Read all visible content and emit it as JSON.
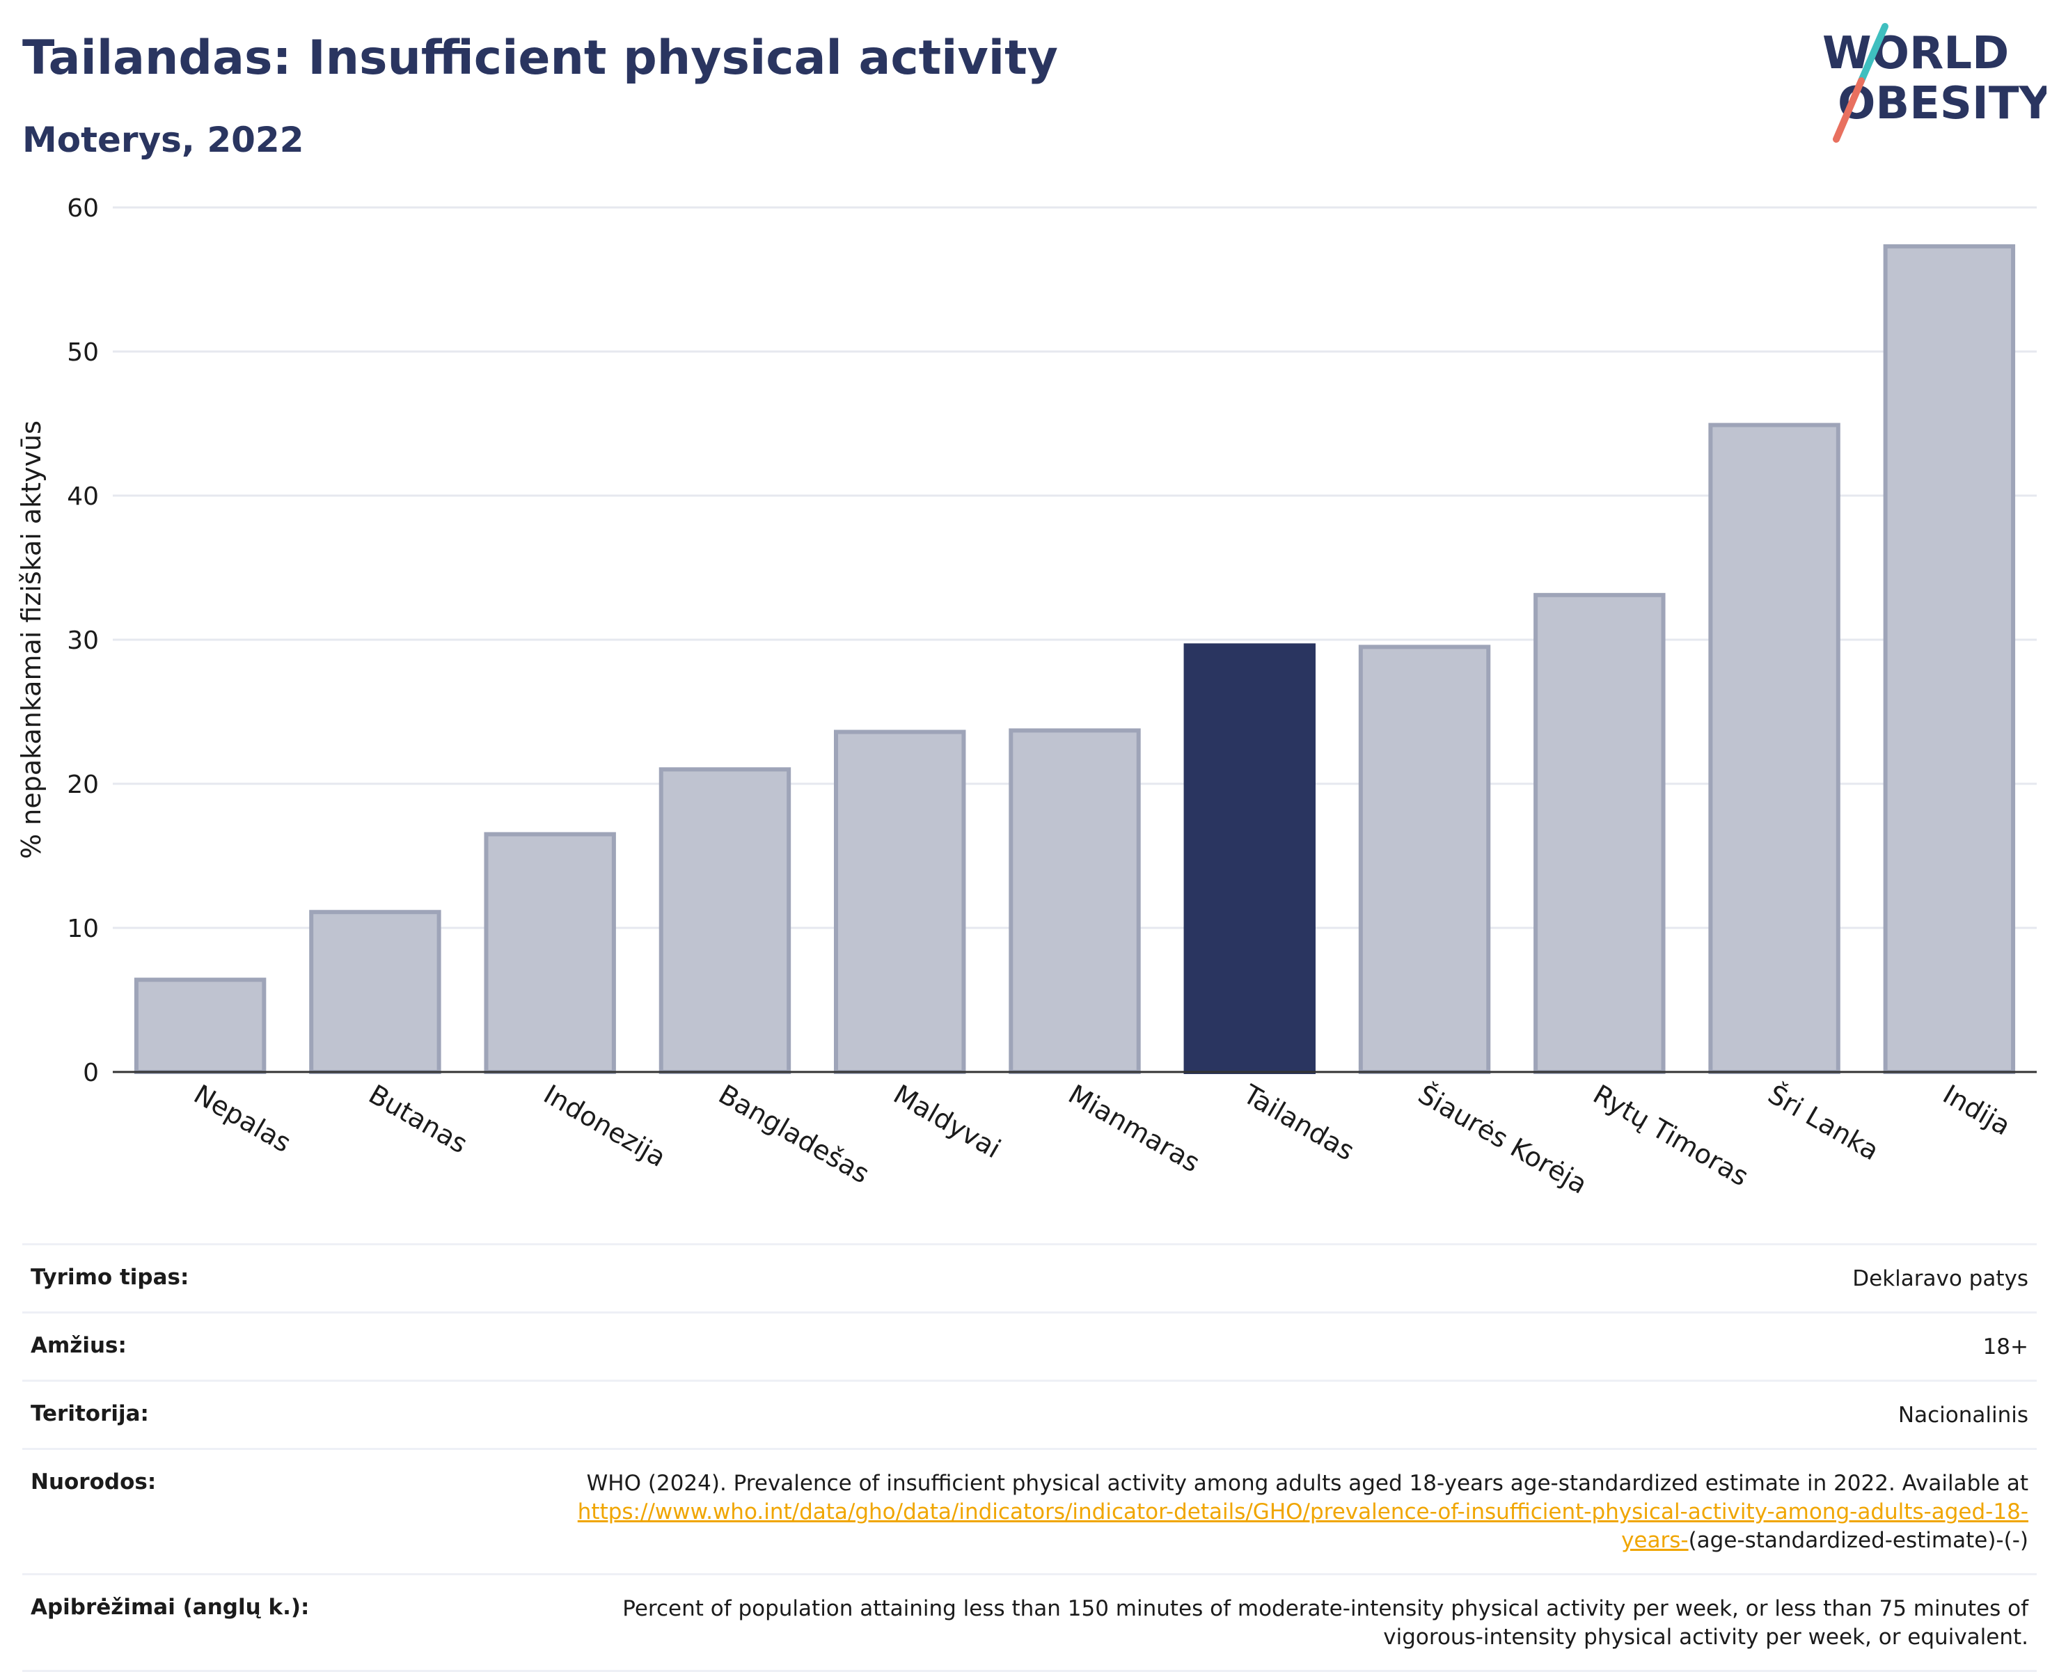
{
  "header": {
    "title": "Tailandas: Insufficient physical activity",
    "subtitle": "Moterys, 2022"
  },
  "logo": {
    "line1": "WORLD",
    "line2": "OBESITY"
  },
  "colors": {
    "highlight": "#2a3560",
    "bar": "#bfc3d0",
    "bar_border": "#9ea4b8",
    "link": "#f0a500",
    "grid": "#e6e8ef"
  },
  "chart_data": {
    "type": "bar",
    "ylabel": "% nepakankamai fiziškai aktyvūs",
    "xlabel": "",
    "ylim": [
      0,
      60
    ],
    "yticks": [
      0,
      10,
      20,
      30,
      40,
      50,
      60
    ],
    "grid": true,
    "highlight": "Tailandas",
    "categories": [
      "Nepalas",
      "Butanas",
      "Indonezija",
      "Bangladešas",
      "Maldyvai",
      "Mianmaras",
      "Tailandas",
      "Šiaurės Korėja",
      "Rytų Timoras",
      "Šri Lanka",
      "Indija"
    ],
    "values": [
      6.4,
      11.1,
      16.5,
      21.0,
      23.6,
      23.7,
      29.6,
      29.5,
      33.1,
      44.9,
      57.3
    ]
  },
  "meta": [
    {
      "label": "Tyrimo tipas:",
      "value": "Deklaravo patys"
    },
    {
      "label": "Amžius:",
      "value": "18+"
    },
    {
      "label": "Teritorija:",
      "value": "Nacionalinis"
    },
    {
      "label": "Nuorodos:",
      "value": "WHO (2024). Prevalence of insufficient physical activity among adults aged 18-years age-standardized estimate in 2022. Available at",
      "link": "https://www.who.int/data/gho/data/indicators/indicator-details/GHO/prevalence-of-insufficient-physical-activity-among-adults-aged-18-years-",
      "suffix": "(age-standardized-estimate)-(-)"
    },
    {
      "label": "Apibrėžimai (anglų k.):",
      "value": "Percent of population attaining less than 150 minutes of moderate-intensity physical activity per week, or less than 75 minutes of vigorous-intensity physical activity per week, or equivalent."
    }
  ]
}
